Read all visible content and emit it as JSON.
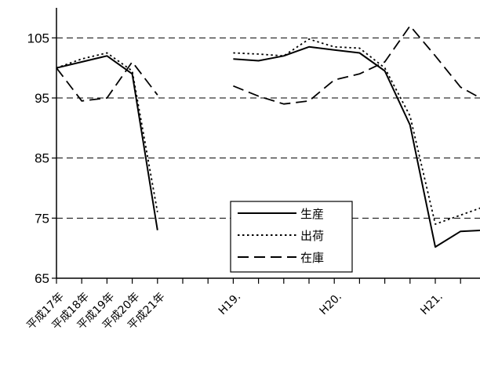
{
  "chart_data": {
    "type": "line",
    "ylim": [
      65,
      110
    ],
    "yticks": [
      65,
      75,
      85,
      95,
      105
    ],
    "ytick_labels": [
      "65",
      "75",
      "85",
      "95",
      "105"
    ],
    "grid": "horizontal-dashed",
    "legend_position": "center-right",
    "x_category_labels": [
      "平成17年",
      "平成18年",
      "平成19年",
      "平成20年",
      "平成21年"
    ],
    "x_month_labels": [
      "H19.",
      "H20.",
      "H21."
    ],
    "series": [
      {
        "name": "生産",
        "style": "solid",
        "annual": [
          100,
          101,
          102,
          99,
          73
        ],
        "monthly": [
          101.5,
          101.2,
          102,
          103.5,
          103,
          102.5,
          99.5,
          90.5,
          70.2,
          72.8,
          73,
          76.5
        ]
      },
      {
        "name": "出荷",
        "style": "dotted",
        "annual": [
          100,
          101.5,
          102.5,
          99.5,
          76
        ],
        "monthly": [
          102.5,
          102.3,
          102,
          104.8,
          103.5,
          103.3,
          100,
          92,
          74,
          75.5,
          77,
          79
        ]
      },
      {
        "name": "在庫",
        "style": "dashed",
        "annual": [
          100,
          94.5,
          95,
          101,
          95.5
        ],
        "monthly": [
          97,
          95.3,
          94,
          94.5,
          98,
          99,
          101,
          107,
          102,
          96.8,
          94.5,
          91.5
        ]
      }
    ]
  }
}
